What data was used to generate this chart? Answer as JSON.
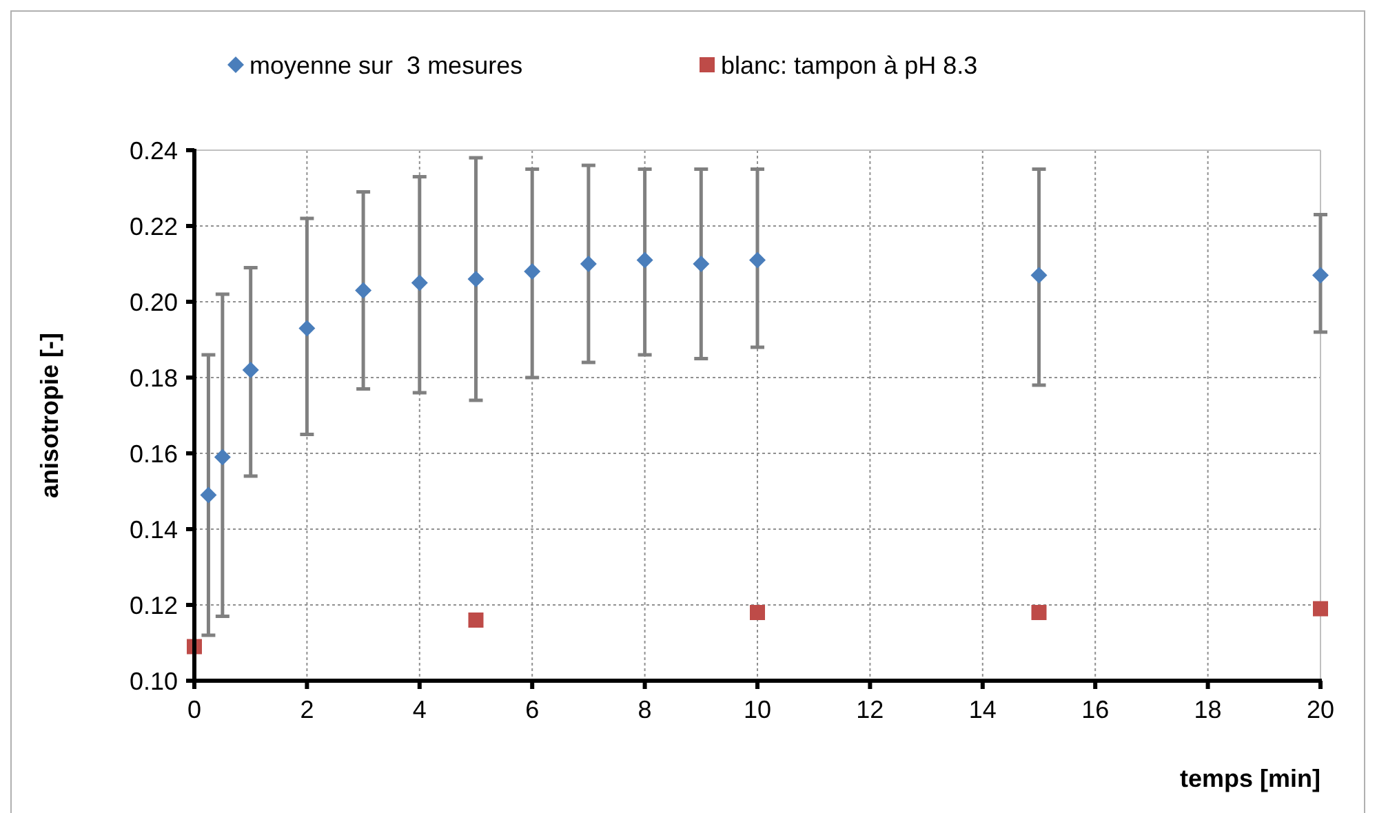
{
  "chart_data": {
    "type": "scatter",
    "xlabel": "temps [min]",
    "ylabel": "anisotropie [-]",
    "xlim": [
      0,
      20
    ],
    "xticks": [
      0,
      2,
      4,
      6,
      8,
      10,
      12,
      14,
      16,
      18,
      20
    ],
    "ylim": [
      0.1,
      0.24
    ],
    "yticks": [
      {
        "value": 0.1,
        "label": "0.10"
      },
      {
        "value": 0.12,
        "label": "0.12"
      },
      {
        "value": 0.14,
        "label": "0.14"
      },
      {
        "value": 0.16,
        "label": "0.16"
      },
      {
        "value": 0.18,
        "label": "0.18"
      },
      {
        "value": 0.2,
        "label": "0.20"
      },
      {
        "value": 0.22,
        "label": "0.22"
      },
      {
        "value": 0.24,
        "label": "0.24"
      }
    ],
    "grid": true,
    "legend": "top",
    "series": [
      {
        "name": "moyenne sur  3 mesures",
        "color": "#4a7ebb",
        "marker": "diamond",
        "x": [
          0.25,
          0.5,
          1,
          2,
          3,
          4,
          5,
          6,
          7,
          8,
          9,
          10,
          15,
          20
        ],
        "values": [
          0.149,
          0.159,
          0.182,
          0.193,
          0.203,
          0.205,
          0.206,
          0.208,
          0.21,
          0.211,
          0.21,
          0.211,
          0.207,
          0.207
        ],
        "errors": [
          [
            0.112,
            0.186
          ],
          [
            0.117,
            0.202
          ],
          [
            0.154,
            0.209
          ],
          [
            0.165,
            0.222
          ],
          [
            0.177,
            0.229
          ],
          [
            0.176,
            0.233
          ],
          [
            0.174,
            0.238
          ],
          [
            0.18,
            0.235
          ],
          [
            0.184,
            0.236
          ],
          [
            0.186,
            0.235
          ],
          [
            0.185,
            0.235
          ],
          [
            0.188,
            0.235
          ],
          [
            0.178,
            0.235
          ],
          [
            0.192,
            0.223
          ]
        ]
      },
      {
        "name": "blanc: tampon à pH 8.3",
        "color": "#be4b48",
        "marker": "square",
        "x": [
          0,
          5,
          10,
          15,
          20
        ],
        "values": [
          0.109,
          0.116,
          0.118,
          0.118,
          0.119
        ]
      }
    ]
  }
}
